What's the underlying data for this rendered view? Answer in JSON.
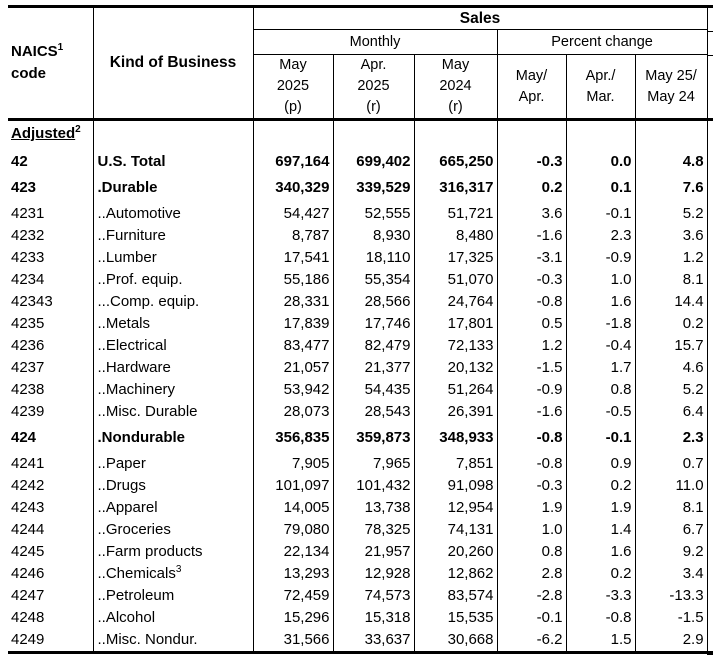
{
  "table": {
    "header": {
      "naics_line1": "NAICS",
      "naics_sup": "1",
      "naics_line2": "code",
      "business": "Kind of Business",
      "sales": "Sales",
      "monthly": "Monthly",
      "percent_change": "Percent change",
      "monthly_columns": [
        {
          "line1": "May",
          "line2": "2025",
          "line3": "(p)"
        },
        {
          "line1": "Apr.",
          "line2": "2025",
          "line3": "(r)"
        },
        {
          "line1": "May",
          "line2": "2024",
          "line3": "(r)"
        }
      ],
      "percent_columns": [
        {
          "line1": "May/",
          "line2": "Apr."
        },
        {
          "line1": "Apr./",
          "line2": "Mar."
        },
        {
          "line1": "May 25/",
          "line2": "May 24"
        }
      ]
    },
    "section_label": {
      "text": "Adjusted",
      "sup": "2"
    },
    "rows": [
      {
        "code": "42",
        "business": "U.S. Total",
        "bold": true,
        "first": true,
        "values": [
          "697,164",
          "699,402",
          "665,250",
          "-0.3",
          "0.0",
          "4.8"
        ]
      },
      {
        "code": "423",
        "business": ".Durable",
        "bold": true,
        "gap": true,
        "values": [
          "340,329",
          "339,529",
          "316,317",
          "0.2",
          "0.1",
          "7.6"
        ]
      },
      {
        "code": "4231",
        "business": "..Automotive",
        "values": [
          "54,427",
          "52,555",
          "51,721",
          "3.6",
          "-0.1",
          "5.2"
        ]
      },
      {
        "code": "4232",
        "business": "..Furniture",
        "values": [
          "8,787",
          "8,930",
          "8,480",
          "-1.6",
          "2.3",
          "3.6"
        ]
      },
      {
        "code": "4233",
        "business": "..Lumber",
        "values": [
          "17,541",
          "18,110",
          "17,325",
          "-3.1",
          "-0.9",
          "1.2"
        ]
      },
      {
        "code": "4234",
        "business": "..Prof. equip.",
        "values": [
          "55,186",
          "55,354",
          "51,070",
          "-0.3",
          "1.0",
          "8.1"
        ]
      },
      {
        "code": "42343",
        "business": "...Comp. equip.",
        "values": [
          "28,331",
          "28,566",
          "24,764",
          "-0.8",
          "1.6",
          "14.4"
        ]
      },
      {
        "code": "4235",
        "business": "..Metals",
        "values": [
          "17,839",
          "17,746",
          "17,801",
          "0.5",
          "-1.8",
          "0.2"
        ]
      },
      {
        "code": "4236",
        "business": "..Electrical",
        "values": [
          "83,477",
          "82,479",
          "72,133",
          "1.2",
          "-0.4",
          "15.7"
        ]
      },
      {
        "code": "4237",
        "business": "..Hardware",
        "values": [
          "21,057",
          "21,377",
          "20,132",
          "-1.5",
          "1.7",
          "4.6"
        ]
      },
      {
        "code": "4238",
        "business": "..Machinery",
        "values": [
          "53,942",
          "54,435",
          "51,264",
          "-0.9",
          "0.8",
          "5.2"
        ]
      },
      {
        "code": "4239",
        "business": "..Misc. Durable",
        "values": [
          "28,073",
          "28,543",
          "26,391",
          "-1.6",
          "-0.5",
          "6.4"
        ]
      },
      {
        "code": "424",
        "business": ".Nondurable",
        "bold": true,
        "gap": true,
        "values": [
          "356,835",
          "359,873",
          "348,933",
          "-0.8",
          "-0.1",
          "2.3"
        ]
      },
      {
        "code": "4241",
        "business": "..Paper",
        "values": [
          "7,905",
          "7,965",
          "7,851",
          "-0.8",
          "0.9",
          "0.7"
        ]
      },
      {
        "code": "4242",
        "business": "..Drugs",
        "values": [
          "101,097",
          "101,432",
          "91,098",
          "-0.3",
          "0.2",
          "11.0"
        ]
      },
      {
        "code": "4243",
        "business": "..Apparel",
        "values": [
          "14,005",
          "13,738",
          "12,954",
          "1.9",
          "1.9",
          "8.1"
        ]
      },
      {
        "code": "4244",
        "business": "..Groceries",
        "values": [
          "79,080",
          "78,325",
          "74,131",
          "1.0",
          "1.4",
          "6.7"
        ]
      },
      {
        "code": "4245",
        "business": "..Farm products",
        "values": [
          "22,134",
          "21,957",
          "20,260",
          "0.8",
          "1.6",
          "9.2"
        ]
      },
      {
        "code": "4246",
        "business": "..Chemicals",
        "superscript": "3",
        "values": [
          "13,293",
          "12,928",
          "12,862",
          "2.8",
          "0.2",
          "3.4"
        ]
      },
      {
        "code": "4247",
        "business": "..Petroleum",
        "values": [
          "72,459",
          "74,573",
          "83,574",
          "-2.8",
          "-3.3",
          "-13.3"
        ]
      },
      {
        "code": "4248",
        "business": "..Alcohol",
        "values": [
          "15,296",
          "15,318",
          "15,535",
          "-0.1",
          "-0.8",
          "-1.5"
        ]
      },
      {
        "code": "4249",
        "business": "..Misc. Nondur.",
        "values": [
          "31,566",
          "33,637",
          "30,668",
          "-6.2",
          "1.5",
          "2.9"
        ]
      }
    ]
  }
}
